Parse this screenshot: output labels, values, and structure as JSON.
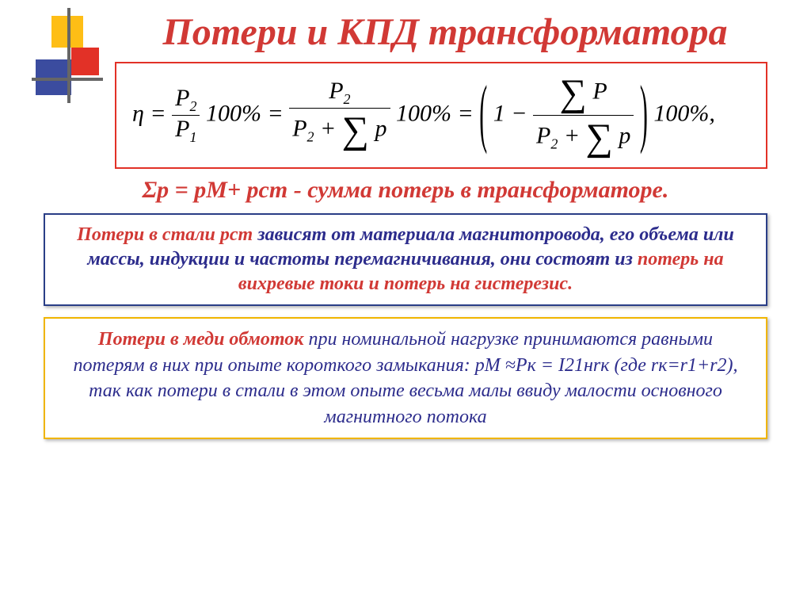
{
  "title": "Потери и КПД трансформатора",
  "formula": {
    "eta": "η",
    "p2": "P",
    "sub2": "2",
    "p1": "P",
    "sub1": "1",
    "hundred": "100%",
    "eq": "=",
    "sigma_p": "∑",
    "p_small": "p",
    "plus": "+",
    "one_minus": "1 −",
    "bigP": "P",
    "comma": ","
  },
  "sum_line": "Σp = pМ+ рст - сумма потерь в трансформаторе.",
  "steel_box": {
    "hl": "Потери в стали рст",
    "rest1": " зависят от материала магнитопровода, его объема или массы, индукции и частоты перемагничивания, они состоят из ",
    "hl2": "потерь на вихревые токи и потерь на гистерезис.",
    "rest2": ""
  },
  "copper_box": {
    "hl": "Потери в меди обмоток",
    "rest": " при номинальной нагрузке принимаются равными потерям в них при опыте короткого замыкания: pМ ≈Pк = I21нrк (где rк=r1+r2), так как потери в стали  в этом опыте весьма малы ввиду малости основного магнитного потока"
  },
  "colors": {
    "red": "#d13935",
    "blue": "#2c2c8c",
    "yellow": "#f0b500",
    "border_blue": "#2a3e87"
  }
}
